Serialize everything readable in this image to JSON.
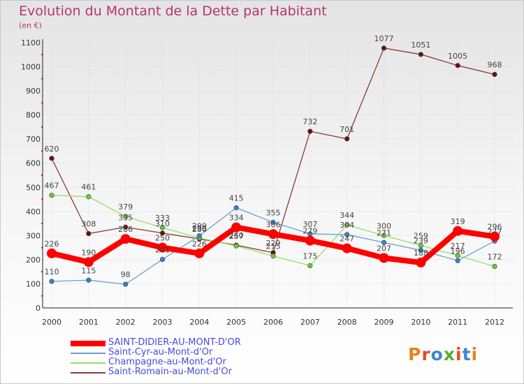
{
  "title": "Evolution du Montant de la Dette par Habitant",
  "subtitle": "(en €)",
  "logo": {
    "text": "Proxiti",
    "letter_colors": [
      "#e8821c",
      "#e34b2a",
      "#3a86d9",
      "#5aab2f",
      "#e34b2a",
      "#3a86d9",
      "#e8821c"
    ]
  },
  "chart_data": {
    "type": "line",
    "title": "Evolution du Montant de la Dette par Habitant",
    "ylabel": "(en €)",
    "xlabel": "",
    "x": [
      "2000",
      "2001",
      "2002",
      "2003",
      "2004",
      "2005",
      "2006",
      "2007",
      "2008",
      "2009",
      "2010",
      "2011",
      "2012"
    ],
    "yticks": [
      "0",
      "100",
      "200",
      "300",
      "400",
      "500",
      "600",
      "700",
      "800",
      "900",
      "1000",
      "1100"
    ],
    "ylim": [
      0,
      1100
    ],
    "grid": true,
    "legend_position": "bottom-left",
    "series": [
      {
        "name": "SAINT-DIDIER-AU-MONT-D'OR",
        "color": "#ff0000",
        "marker": "#ff0000",
        "values": [
          226,
          190,
          286,
          250,
          226,
          334,
          306,
          279,
          247,
          207,
          188,
          319,
          296
        ],
        "labels": [
          "226",
          "190",
          "286",
          "250",
          "226",
          "334",
          "306",
          "279",
          "247",
          "207",
          "188",
          "319",
          "296"
        ]
      },
      {
        "name": "Saint-Cyr-au-Mont-d'Or",
        "color": "#6aa0d0",
        "marker": "#3a80d0",
        "values": [
          110,
          115,
          98,
          201,
          299,
          415,
          355,
          307,
          304,
          271,
          239,
          196,
          277
        ],
        "labels": [
          "110",
          "115",
          "98",
          "201",
          "299",
          "415",
          "355",
          "307",
          "304",
          "271",
          "239",
          "196",
          "277"
        ]
      },
      {
        "name": "Champagne-au-Mont-d'Or",
        "color": "#99dd66",
        "marker": "#66cc33",
        "values": [
          467,
          461,
          379,
          333,
          290,
          257,
          215,
          175,
          344,
          300,
          259,
          217,
          172
        ],
        "labels": [
          "467",
          "461",
          "379",
          "333",
          "290",
          "257",
          "215",
          "175",
          "344",
          "300",
          "259",
          "217",
          "172"
        ]
      },
      {
        "name": "Saint-Romain-au-Mont-d'Or",
        "color": "#8b3a3a",
        "marker": "#6a1010",
        "values": [
          620,
          308,
          335,
          310,
          286,
          260,
          229,
          732,
          701,
          1077,
          1051,
          1005,
          968
        ],
        "labels": [
          "620",
          "308",
          "335",
          "310",
          "286",
          "260",
          "229",
          "732",
          "701",
          "1077",
          "1051",
          "1005",
          "968"
        ]
      }
    ]
  }
}
